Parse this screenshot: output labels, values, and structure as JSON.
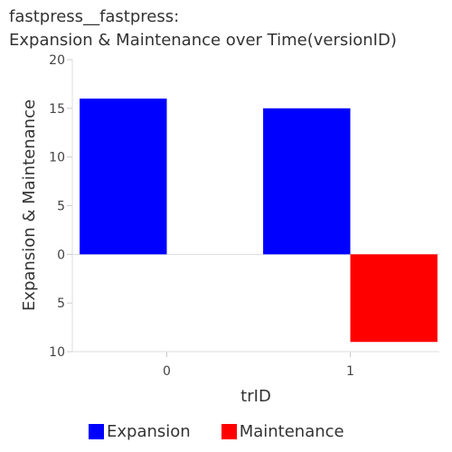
{
  "title": {
    "line1": "fastpress__fastpress:",
    "line2": "Expansion & Maintenance over Time(versionID)"
  },
  "chart_data": {
    "type": "bar",
    "categories": [
      "0",
      "1"
    ],
    "xlabel": "trID",
    "ylabel": "Expansion & Maintenance",
    "ylim": [
      -10,
      20
    ],
    "yticks": [
      20,
      15,
      10,
      5,
      0,
      -5,
      -10
    ],
    "ytick_labels": [
      "20",
      "15",
      "10",
      "5",
      "0",
      "5",
      "10"
    ],
    "series": [
      {
        "name": "Expansion",
        "color": "#0000ff",
        "values": [
          16,
          15
        ]
      },
      {
        "name": "Maintenance",
        "color": "#ff0000",
        "values": [
          0,
          -9
        ]
      }
    ],
    "grid": false,
    "legend_position": "bottom"
  }
}
